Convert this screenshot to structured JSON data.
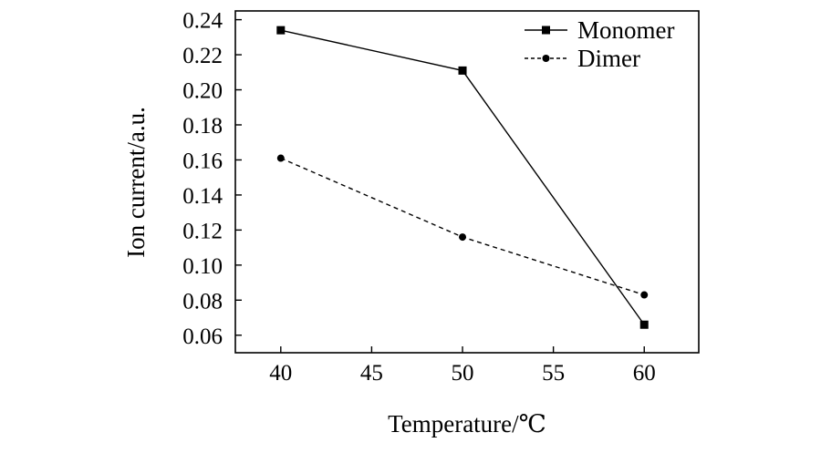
{
  "chart_data": {
    "type": "line",
    "xlabel": "Temperature/℃",
    "ylabel": "Ion current/a.u.",
    "x": [
      40,
      50,
      60
    ],
    "xlim": [
      37.5,
      63
    ],
    "ylim": [
      0.05,
      0.245
    ],
    "xticks": [
      40,
      45,
      50,
      55,
      60
    ],
    "xtick_labels": [
      "40",
      "45",
      "50",
      "55",
      "60"
    ],
    "yticks": [
      0.06,
      0.08,
      0.1,
      0.12,
      0.14,
      0.16,
      0.18,
      0.2,
      0.22,
      0.24
    ],
    "ytick_labels": [
      "0.06",
      "0.08",
      "0.10",
      "0.12",
      "0.14",
      "0.16",
      "0.18",
      "0.20",
      "0.22",
      "0.24"
    ],
    "grid": false,
    "legend_position": "top-right",
    "series": [
      {
        "name": "Monomer",
        "values": [
          0.234,
          0.211,
          0.066
        ],
        "marker": "square",
        "line_style": "solid",
        "color": "#000000"
      },
      {
        "name": "Dimer",
        "values": [
          0.161,
          0.116,
          0.083
        ],
        "marker": "circle",
        "line_style": "dashed",
        "color": "#000000"
      }
    ]
  }
}
